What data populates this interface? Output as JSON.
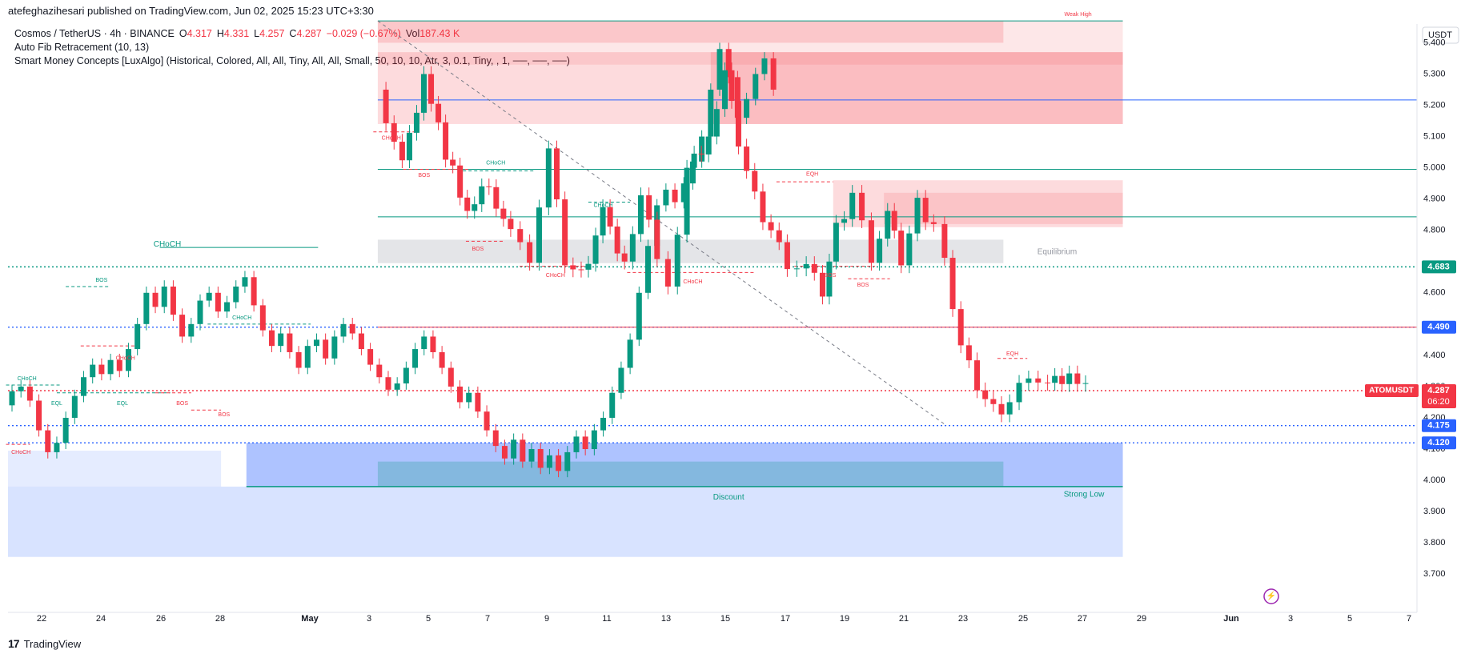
{
  "header": {
    "published_line": "atefeghazihesari published on TradingView.com, Jun 02, 2025 15:23 UTC+3:30"
  },
  "legend": {
    "symbol": "Cosmos / TetherUS · 4h · BINANCE",
    "o_label": "O",
    "o_value": "4.317",
    "h_label": "H",
    "h_value": "4.331",
    "l_label": "L",
    "l_value": "4.257",
    "c_label": "C",
    "c_value": "4.287",
    "change": "−0.029 (−0.67%)",
    "vol_label": "Vol",
    "vol_value": "187.43 K",
    "indicator1": "Auto Fib Retracement (10, 13)",
    "indicator2": "Smart Money Concepts [LuxAlgo] (Historical, Colored, All, All, Tiny, All, All, Small, 50, 10, 10, Atr, 3, 0.1, Tiny, , 1, ──, ──, ──)"
  },
  "footer": {
    "brand": "TradingView",
    "logo": "17"
  },
  "colors": {
    "up": "#089981",
    "down": "#f23645",
    "blue": "#2962ff",
    "grid": "#f0f3fa"
  },
  "chart_data": {
    "type": "candlestick",
    "currency": "USDT",
    "symbol_tag": "ATOMUSDT",
    "last_price": "4.287",
    "countdown": "06:20",
    "y_ticks": [
      "5.400",
      "5.300",
      "5.200",
      "5.100",
      "5.000",
      "4.900",
      "4.800",
      "4.600",
      "4.400",
      "4.300",
      "4.200",
      "4.100",
      "4.000",
      "3.900",
      "3.800",
      "3.700"
    ],
    "ylim": [
      3.68,
      5.46
    ],
    "x_ticks": [
      "22",
      "24",
      "26",
      "28",
      "May",
      "3",
      "5",
      "7",
      "9",
      "11",
      "13",
      "15",
      "17",
      "19",
      "21",
      "23",
      "25",
      "27",
      "29",
      "Jun",
      "3",
      "5",
      "7"
    ],
    "price_badges": [
      {
        "value": "4.683",
        "color": "#089981"
      },
      {
        "value": "4.490",
        "color": "#2962ff"
      },
      {
        "value": "4.175",
        "color": "#2962ff"
      },
      {
        "value": "4.120",
        "color": "#2962ff"
      }
    ],
    "hlines": [
      {
        "price": 4.683,
        "color": "#089981",
        "style": "dotted",
        "from": "Apr 20"
      },
      {
        "price": 4.49,
        "color": "#2962ff",
        "style": "dotted",
        "from": "Apr 20"
      },
      {
        "price": 4.49,
        "color": "#f23645",
        "style": "solid",
        "from": "May 12"
      },
      {
        "price": 4.175,
        "color": "#2962ff",
        "style": "dotted",
        "from": "Apr 20"
      },
      {
        "price": 4.12,
        "color": "#2962ff",
        "style": "dotted",
        "from": "Apr 20"
      },
      {
        "price": 5.217,
        "color": "#2962ff",
        "style": "solid",
        "from": "May 12"
      },
      {
        "price": 4.995,
        "color": "#089981",
        "style": "solid",
        "from": "May 12"
      },
      {
        "price": 4.843,
        "color": "#089981",
        "style": "solid",
        "from": "May 12"
      },
      {
        "price": 4.287,
        "color": "#f23645",
        "style": "dotted",
        "from": "Apr 20"
      }
    ],
    "zones": [
      {
        "kind": "premium",
        "from_day": 12.25,
        "to_day": 37.2,
        "low": 5.33,
        "high": 5.47
      },
      {
        "kind": "ob_bear",
        "from_day": 12.25,
        "to_day": 33.2,
        "low": 5.4,
        "high": 5.47
      },
      {
        "kind": "ob_bear",
        "from_day": 23.4,
        "to_day": 37.2,
        "low": 5.14,
        "high": 5.37
      },
      {
        "kind": "ob_bear",
        "from_day": 12.25,
        "to_day": 37.2,
        "low": 5.14,
        "high": 5.37
      },
      {
        "kind": "ob_bear",
        "from_day": 27.5,
        "to_day": 37.2,
        "low": 4.81,
        "high": 4.96
      },
      {
        "kind": "ob_bear2",
        "from_day": 29.2,
        "to_day": 37.2,
        "low": 4.82,
        "high": 4.92
      },
      {
        "kind": "equilibrium",
        "from_day": 12.25,
        "to_day": 33.2,
        "low": 4.695,
        "high": 4.77
      },
      {
        "kind": "discount",
        "from_day": -0.2,
        "to_day": 37.2,
        "low": 3.755,
        "high": 3.98
      },
      {
        "kind": "ob_bull_light",
        "from_day": -0.2,
        "to_day": 7,
        "low": 3.98,
        "high": 4.095
      },
      {
        "kind": "ob_bull",
        "from_day": 7.85,
        "to_day": 37.2,
        "low": 3.98,
        "high": 4.12
      },
      {
        "kind": "ob_bull_inner",
        "from_day": 12.25,
        "to_day": 33.2,
        "low": 3.98,
        "high": 4.06
      }
    ],
    "zone_labels": [
      {
        "text": "Equilibrium",
        "day": 35.0,
        "price": 4.73,
        "color": "#9598a1"
      },
      {
        "text": "Discount",
        "day": 24.0,
        "price": 3.945,
        "color": "#089981"
      },
      {
        "text": "Strong Low",
        "day": 35.9,
        "price": 3.955,
        "color": "#089981"
      }
    ],
    "annotations": [
      {
        "text": "CHoCH",
        "day": 5.2,
        "price": 4.755,
        "color": "#089981",
        "size": 10
      },
      {
        "text": "BOS",
        "day": 3.0,
        "price": 4.64,
        "color": "#089981",
        "size": 7
      },
      {
        "text": "CHoCH",
        "day": 7.7,
        "price": 4.52,
        "color": "#089981",
        "size": 7
      },
      {
        "text": "CHoCH",
        "day": 0.5,
        "price": 4.325,
        "color": "#089981",
        "size": 7
      },
      {
        "text": "EQL",
        "day": 1.5,
        "price": 4.245,
        "color": "#089981",
        "size": 7
      },
      {
        "text": "EQL",
        "day": 3.7,
        "price": 4.245,
        "color": "#089981",
        "size": 7
      },
      {
        "text": "CHoCH",
        "day": 3.8,
        "price": 4.39,
        "color": "#f23645",
        "size": 7
      },
      {
        "text": "BOS",
        "day": 5.7,
        "price": 4.245,
        "color": "#f23645",
        "size": 7
      },
      {
        "text": "BOS",
        "day": 7.1,
        "price": 4.21,
        "color": "#f23645",
        "size": 7
      },
      {
        "text": "CHoCH",
        "day": 0.3,
        "price": 4.09,
        "color": "#f23645",
        "size": 7
      },
      {
        "text": "CHoCH",
        "day": 12.7,
        "price": 5.095,
        "color": "#f23645",
        "size": 7
      },
      {
        "text": "BOS",
        "day": 13.8,
        "price": 4.975,
        "color": "#f23645",
        "size": 7
      },
      {
        "text": "CHoCH",
        "day": 16.2,
        "price": 5.015,
        "color": "#089981",
        "size": 7
      },
      {
        "text": "BOS",
        "day": 15.6,
        "price": 4.74,
        "color": "#f23645",
        "size": 7
      },
      {
        "text": "CHoCH",
        "day": 18.2,
        "price": 4.655,
        "color": "#f23645",
        "size": 7
      },
      {
        "text": "CHoCH",
        "day": 19.8,
        "price": 4.88,
        "color": "#089981",
        "size": 7
      },
      {
        "text": "CHoCH",
        "day": 22.8,
        "price": 4.635,
        "color": "#f23645",
        "size": 7
      },
      {
        "text": "EQH",
        "day": 26.8,
        "price": 4.98,
        "color": "#f23645",
        "size": 7
      },
      {
        "text": "BOS",
        "day": 27.4,
        "price": 4.655,
        "color": "#f23645",
        "size": 7
      },
      {
        "text": "BOS",
        "day": 28.5,
        "price": 4.625,
        "color": "#f23645",
        "size": 7
      },
      {
        "text": "EQH",
        "day": 33.5,
        "price": 4.405,
        "color": "#f23645",
        "size": 7
      },
      {
        "text": "Weak High",
        "day": 35.7,
        "price": 5.49,
        "color": "#f23645",
        "size": 7
      }
    ],
    "structure_lines": [
      {
        "day1": 4.95,
        "day2": 10.25,
        "price": 4.745,
        "color": "#089981",
        "dash": false
      },
      {
        "day1": 1.8,
        "day2": 3.25,
        "price": 4.62,
        "color": "#089981",
        "dash": true
      },
      {
        "day1": 6.55,
        "day2": 10.0,
        "price": 4.5,
        "color": "#089981",
        "dash": true
      },
      {
        "day1": -0.2,
        "day2": 1.6,
        "price": 4.305,
        "color": "#089981",
        "dash": true
      },
      {
        "day1": 1.5,
        "day2": 5.3,
        "price": 4.28,
        "color": "#089981",
        "dash": true
      },
      {
        "day1": 2.3,
        "day2": 4.1,
        "price": 4.43,
        "color": "#f23645",
        "dash": true
      },
      {
        "day1": 4.8,
        "day2": 6.0,
        "price": 4.28,
        "color": "#f23645",
        "dash": true
      },
      {
        "day1": 6.0,
        "day2": 7.0,
        "price": 4.225,
        "color": "#f23645",
        "dash": true
      },
      {
        "day1": -0.2,
        "day2": 0.6,
        "price": 4.115,
        "color": "#f23645",
        "dash": true
      },
      {
        "day1": 12.1,
        "day2": 13.6,
        "price": 5.115,
        "color": "#f23645",
        "dash": true
      },
      {
        "day1": 13.1,
        "day2": 15.3,
        "price": 4.995,
        "color": "#f23645",
        "dash": true
      },
      {
        "day1": 15.1,
        "day2": 17.5,
        "price": 4.99,
        "color": "#089981",
        "dash": true
      },
      {
        "day1": 15.2,
        "day2": 16.5,
        "price": 4.765,
        "color": "#f23645",
        "dash": true
      },
      {
        "day1": 17.0,
        "day2": 19.2,
        "price": 4.685,
        "color": "#f23645",
        "dash": true
      },
      {
        "day1": 19.3,
        "day2": 20.7,
        "price": 4.89,
        "color": "#089981",
        "dash": true
      },
      {
        "day1": 20.6,
        "day2": 24.9,
        "price": 4.665,
        "color": "#f23645",
        "dash": true
      },
      {
        "day1": 25.6,
        "day2": 27.5,
        "price": 4.955,
        "color": "#f23645",
        "dash": true
      },
      {
        "day1": 26.2,
        "day2": 28.9,
        "price": 4.685,
        "color": "#f23645",
        "dash": true
      },
      {
        "day1": 28.0,
        "day2": 29.4,
        "price": 4.645,
        "color": "#f23645",
        "dash": true
      },
      {
        "day1": 33.0,
        "day2": 34.0,
        "price": 4.39,
        "color": "#f23645",
        "dash": true
      }
    ],
    "fib_diagonal": {
      "day1": 12.25,
      "price1": 5.47,
      "day2": 31.3,
      "price2": 4.175
    },
    "candles": [
      [
        0.0,
        4.24,
        4.285
      ],
      [
        0.3,
        4.285,
        4.3
      ],
      [
        0.6,
        4.3,
        4.255
      ],
      [
        0.9,
        4.255,
        4.16
      ],
      [
        1.2,
        4.16,
        4.09
      ],
      [
        1.5,
        4.09,
        4.12
      ],
      [
        1.8,
        4.12,
        4.2
      ],
      [
        2.1,
        4.2,
        4.27
      ],
      [
        2.4,
        4.27,
        4.33
      ],
      [
        2.7,
        4.33,
        4.37
      ],
      [
        3.0,
        4.37,
        4.34
      ],
      [
        3.3,
        4.34,
        4.385
      ],
      [
        3.6,
        4.385,
        4.35
      ],
      [
        3.9,
        4.35,
        4.42
      ],
      [
        4.2,
        4.42,
        4.5
      ],
      [
        4.5,
        4.5,
        4.6
      ],
      [
        4.8,
        4.6,
        4.555
      ],
      [
        5.1,
        4.555,
        4.62
      ],
      [
        5.4,
        4.62,
        4.53
      ],
      [
        5.7,
        4.53,
        4.46
      ],
      [
        6.0,
        4.46,
        4.5
      ],
      [
        6.3,
        4.5,
        4.575
      ],
      [
        6.6,
        4.575,
        4.6
      ],
      [
        6.9,
        4.6,
        4.54
      ],
      [
        7.2,
        4.54,
        4.57
      ],
      [
        7.5,
        4.57,
        4.62
      ],
      [
        7.8,
        4.62,
        4.65
      ],
      [
        8.1,
        4.65,
        4.56
      ],
      [
        8.4,
        4.56,
        4.48
      ],
      [
        8.7,
        4.48,
        4.43
      ],
      [
        9.0,
        4.43,
        4.47
      ],
      [
        9.3,
        4.47,
        4.41
      ],
      [
        9.6,
        4.41,
        4.36
      ],
      [
        9.9,
        4.36,
        4.43
      ],
      [
        10.2,
        4.43,
        4.45
      ],
      [
        10.5,
        4.45,
        4.39
      ],
      [
        10.8,
        4.39,
        4.46
      ],
      [
        11.1,
        4.46,
        4.5
      ],
      [
        11.4,
        4.5,
        4.47
      ],
      [
        11.7,
        4.47,
        4.42
      ],
      [
        12.0,
        4.42,
        4.37
      ],
      [
        12.3,
        4.37,
        4.33
      ],
      [
        12.6,
        4.33,
        4.29
      ],
      [
        12.9,
        4.29,
        4.31
      ],
      [
        13.2,
        4.31,
        4.36
      ],
      [
        13.5,
        4.36,
        4.42
      ],
      [
        13.8,
        4.42,
        4.46
      ],
      [
        14.1,
        4.46,
        4.41
      ],
      [
        14.4,
        4.41,
        4.36
      ],
      [
        14.7,
        4.36,
        4.3
      ],
      [
        15.0,
        4.3,
        4.25
      ],
      [
        15.3,
        4.25,
        4.28
      ],
      [
        15.6,
        4.28,
        4.22
      ],
      [
        15.9,
        4.22,
        4.16
      ],
      [
        16.2,
        4.16,
        4.11
      ],
      [
        16.5,
        4.11,
        4.07
      ],
      [
        16.8,
        4.07,
        4.13
      ],
      [
        17.1,
        4.13,
        4.06
      ],
      [
        17.4,
        4.06,
        4.1
      ],
      [
        17.7,
        4.1,
        4.04
      ],
      [
        18.0,
        4.04,
        4.08
      ],
      [
        18.3,
        4.08,
        4.03
      ],
      [
        18.6,
        4.03,
        4.09
      ],
      [
        18.9,
        4.09,
        4.14
      ],
      [
        19.2,
        4.14,
        4.1
      ],
      [
        19.5,
        4.1,
        4.16
      ],
      [
        19.8,
        4.16,
        4.2
      ],
      [
        20.1,
        4.2,
        4.28
      ],
      [
        20.4,
        4.28,
        4.36
      ],
      [
        20.7,
        4.36,
        4.45
      ],
      [
        21.0,
        4.45,
        4.6
      ],
      [
        21.3,
        4.6,
        4.75
      ],
      [
        21.6,
        4.75,
        4.88
      ],
      [
        21.9,
        4.88,
        4.93
      ],
      [
        22.2,
        4.93,
        4.89
      ],
      [
        22.5,
        4.89,
        4.95
      ],
      [
        22.8,
        4.95,
        5.02
      ],
      [
        23.1,
        5.02,
        5.1
      ],
      [
        23.4,
        5.1,
        5.25
      ],
      [
        23.7,
        5.25,
        5.38
      ],
      [
        24.0,
        5.38,
        5.29
      ],
      [
        24.3,
        5.29,
        5.16
      ],
      [
        24.6,
        5.16,
        5.22
      ],
      [
        24.9,
        5.22,
        5.3
      ],
      [
        25.2,
        5.3,
        5.35
      ],
      [
        25.5,
        5.35,
        5.25
      ]
    ]
  }
}
